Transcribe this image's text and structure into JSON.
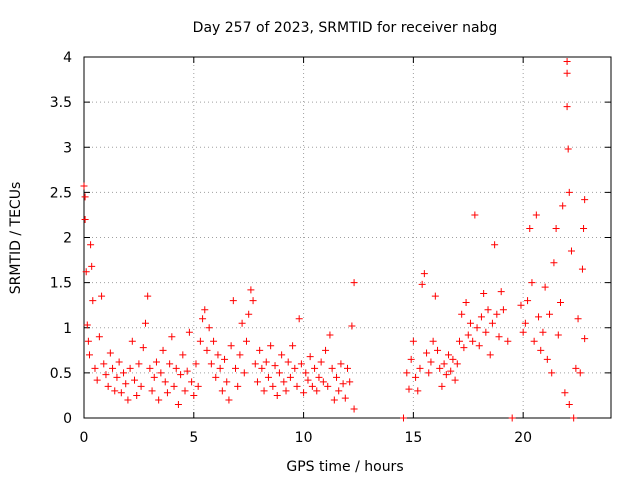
{
  "chart_data": {
    "type": "scatter",
    "title": "Day 257 of 2023, SRMTID for receiver nabg",
    "xlabel": "GPS time / hours",
    "ylabel": "SRMTID / TECUs",
    "xlim": [
      0,
      24
    ],
    "ylim": [
      0,
      4
    ],
    "xticks": [
      0,
      5,
      10,
      15,
      20
    ],
    "yticks": [
      0,
      0.5,
      1,
      1.5,
      2,
      2.5,
      3,
      3.5,
      4
    ],
    "xtick_labels": [
      "0",
      "5",
      "10",
      "15",
      "20"
    ],
    "ytick_labels": [
      "0",
      "0.5",
      "1",
      "1.5",
      "2",
      "2.5",
      "3",
      "3.5",
      "4"
    ],
    "grid": true,
    "marker": "+",
    "color": "#ff0000",
    "series": [
      {
        "name": "SRMTID",
        "points": [
          [
            0.0,
            2.57
          ],
          [
            0.05,
            2.45
          ],
          [
            0.05,
            2.2
          ],
          [
            0.1,
            1.62
          ],
          [
            0.15,
            1.03
          ],
          [
            0.2,
            0.85
          ],
          [
            0.25,
            0.7
          ],
          [
            0.3,
            1.92
          ],
          [
            0.35,
            1.68
          ],
          [
            0.4,
            1.3
          ],
          [
            0.5,
            0.55
          ],
          [
            0.6,
            0.42
          ],
          [
            0.7,
            0.9
          ],
          [
            0.8,
            1.35
          ],
          [
            0.9,
            0.6
          ],
          [
            1.0,
            0.48
          ],
          [
            1.1,
            0.35
          ],
          [
            1.2,
            0.72
          ],
          [
            1.3,
            0.55
          ],
          [
            1.4,
            0.3
          ],
          [
            1.5,
            0.45
          ],
          [
            1.6,
            0.62
          ],
          [
            1.7,
            0.28
          ],
          [
            1.8,
            0.5
          ],
          [
            1.9,
            0.38
          ],
          [
            2.0,
            0.2
          ],
          [
            2.1,
            0.55
          ],
          [
            2.2,
            0.85
          ],
          [
            2.3,
            0.42
          ],
          [
            2.4,
            0.25
          ],
          [
            2.5,
            0.6
          ],
          [
            2.6,
            0.35
          ],
          [
            2.7,
            0.78
          ],
          [
            2.8,
            1.05
          ],
          [
            2.9,
            1.35
          ],
          [
            3.0,
            0.55
          ],
          [
            3.1,
            0.3
          ],
          [
            3.2,
            0.45
          ],
          [
            3.3,
            0.62
          ],
          [
            3.4,
            0.2
          ],
          [
            3.5,
            0.5
          ],
          [
            3.6,
            0.75
          ],
          [
            3.7,
            0.4
          ],
          [
            3.8,
            0.28
          ],
          [
            3.9,
            0.6
          ],
          [
            4.0,
            0.9
          ],
          [
            4.1,
            0.35
          ],
          [
            4.2,
            0.55
          ],
          [
            4.3,
            0.15
          ],
          [
            4.4,
            0.48
          ],
          [
            4.5,
            0.7
          ],
          [
            4.6,
            0.3
          ],
          [
            4.7,
            0.52
          ],
          [
            4.8,
            0.95
          ],
          [
            4.9,
            0.4
          ],
          [
            5.0,
            0.25
          ],
          [
            5.1,
            0.6
          ],
          [
            5.2,
            0.35
          ],
          [
            5.3,
            0.85
          ],
          [
            5.4,
            1.1
          ],
          [
            5.5,
            1.2
          ],
          [
            5.6,
            0.75
          ],
          [
            5.7,
            1.0
          ],
          [
            5.8,
            0.6
          ],
          [
            5.9,
            0.85
          ],
          [
            6.0,
            0.45
          ],
          [
            6.1,
            0.7
          ],
          [
            6.2,
            0.55
          ],
          [
            6.3,
            0.3
          ],
          [
            6.4,
            0.65
          ],
          [
            6.5,
            0.4
          ],
          [
            6.6,
            0.2
          ],
          [
            6.7,
            0.8
          ],
          [
            6.8,
            1.3
          ],
          [
            6.9,
            0.55
          ],
          [
            7.0,
            0.35
          ],
          [
            7.1,
            0.7
          ],
          [
            7.2,
            1.05
          ],
          [
            7.3,
            0.5
          ],
          [
            7.4,
            0.85
          ],
          [
            7.5,
            1.15
          ],
          [
            7.6,
            1.42
          ],
          [
            7.7,
            1.3
          ],
          [
            7.8,
            0.6
          ],
          [
            7.9,
            0.4
          ],
          [
            8.0,
            0.75
          ],
          [
            8.1,
            0.55
          ],
          [
            8.2,
            0.3
          ],
          [
            8.3,
            0.62
          ],
          [
            8.4,
            0.45
          ],
          [
            8.5,
            0.8
          ],
          [
            8.6,
            0.35
          ],
          [
            8.7,
            0.58
          ],
          [
            8.8,
            0.25
          ],
          [
            8.9,
            0.5
          ],
          [
            9.0,
            0.7
          ],
          [
            9.1,
            0.4
          ],
          [
            9.2,
            0.3
          ],
          [
            9.3,
            0.62
          ],
          [
            9.4,
            0.45
          ],
          [
            9.5,
            0.8
          ],
          [
            9.6,
            0.55
          ],
          [
            9.7,
            0.35
          ],
          [
            9.8,
            1.1
          ],
          [
            9.9,
            0.6
          ],
          [
            10.0,
            0.28
          ],
          [
            10.1,
            0.5
          ],
          [
            10.2,
            0.42
          ],
          [
            10.3,
            0.68
          ],
          [
            10.4,
            0.35
          ],
          [
            10.5,
            0.55
          ],
          [
            10.6,
            0.3
          ],
          [
            10.7,
            0.45
          ],
          [
            10.8,
            0.62
          ],
          [
            10.9,
            0.4
          ],
          [
            11.0,
            0.75
          ],
          [
            11.1,
            0.35
          ],
          [
            11.2,
            0.92
          ],
          [
            11.3,
            0.55
          ],
          [
            11.4,
            0.2
          ],
          [
            11.5,
            0.45
          ],
          [
            11.6,
            0.3
          ],
          [
            11.7,
            0.6
          ],
          [
            11.8,
            0.38
          ],
          [
            11.9,
            0.22
          ],
          [
            12.0,
            0.55
          ],
          [
            12.1,
            0.4
          ],
          [
            12.2,
            1.02
          ],
          [
            12.3,
            1.5
          ],
          [
            12.3,
            0.1
          ],
          [
            14.55,
            0.0
          ],
          [
            14.7,
            0.5
          ],
          [
            14.8,
            0.32
          ],
          [
            14.9,
            0.65
          ],
          [
            15.0,
            0.85
          ],
          [
            15.1,
            0.45
          ],
          [
            15.2,
            0.3
          ],
          [
            15.3,
            0.55
          ],
          [
            15.4,
            1.48
          ],
          [
            15.5,
            1.6
          ],
          [
            15.6,
            0.72
          ],
          [
            15.7,
            0.5
          ],
          [
            15.8,
            0.62
          ],
          [
            15.9,
            0.85
          ],
          [
            16.0,
            1.35
          ],
          [
            16.1,
            0.75
          ],
          [
            16.2,
            0.55
          ],
          [
            16.3,
            0.35
          ],
          [
            16.4,
            0.6
          ],
          [
            16.5,
            0.48
          ],
          [
            16.6,
            0.7
          ],
          [
            16.7,
            0.52
          ],
          [
            16.8,
            0.65
          ],
          [
            16.9,
            0.42
          ],
          [
            17.0,
            0.6
          ],
          [
            17.1,
            0.85
          ],
          [
            17.2,
            1.15
          ],
          [
            17.3,
            0.78
          ],
          [
            17.4,
            1.28
          ],
          [
            17.5,
            0.92
          ],
          [
            17.6,
            1.05
          ],
          [
            17.7,
            0.85
          ],
          [
            17.8,
            2.25
          ],
          [
            17.9,
            1.0
          ],
          [
            18.0,
            0.8
          ],
          [
            18.1,
            1.12
          ],
          [
            18.2,
            1.38
          ],
          [
            18.3,
            0.95
          ],
          [
            18.4,
            1.2
          ],
          [
            18.5,
            0.7
          ],
          [
            18.6,
            1.05
          ],
          [
            18.7,
            1.92
          ],
          [
            18.8,
            1.15
          ],
          [
            18.9,
            0.9
          ],
          [
            19.0,
            1.4
          ],
          [
            19.1,
            1.2
          ],
          [
            19.3,
            0.85
          ],
          [
            19.5,
            0.0
          ],
          [
            19.9,
            1.25
          ],
          [
            20.0,
            0.95
          ],
          [
            20.1,
            1.05
          ],
          [
            20.2,
            1.3
          ],
          [
            20.3,
            2.1
          ],
          [
            20.4,
            1.5
          ],
          [
            20.5,
            0.85
          ],
          [
            20.6,
            2.25
          ],
          [
            20.7,
            1.12
          ],
          [
            20.8,
            0.75
          ],
          [
            20.9,
            0.95
          ],
          [
            21.0,
            1.45
          ],
          [
            21.1,
            0.65
          ],
          [
            21.2,
            1.15
          ],
          [
            21.3,
            0.5
          ],
          [
            21.4,
            1.72
          ],
          [
            21.5,
            2.1
          ],
          [
            21.6,
            0.92
          ],
          [
            21.7,
            1.28
          ],
          [
            21.8,
            2.35
          ],
          [
            21.9,
            0.28
          ],
          [
            22.0,
            3.95
          ],
          [
            22.0,
            3.82
          ],
          [
            22.0,
            3.45
          ],
          [
            22.05,
            2.98
          ],
          [
            22.1,
            2.5
          ],
          [
            22.1,
            0.15
          ],
          [
            22.2,
            1.85
          ],
          [
            22.3,
            0.0
          ],
          [
            22.4,
            0.55
          ],
          [
            22.5,
            1.1
          ],
          [
            22.6,
            0.5
          ],
          [
            22.7,
            1.65
          ],
          [
            22.75,
            2.1
          ],
          [
            22.8,
            2.42
          ],
          [
            22.8,
            0.88
          ]
        ]
      }
    ]
  }
}
